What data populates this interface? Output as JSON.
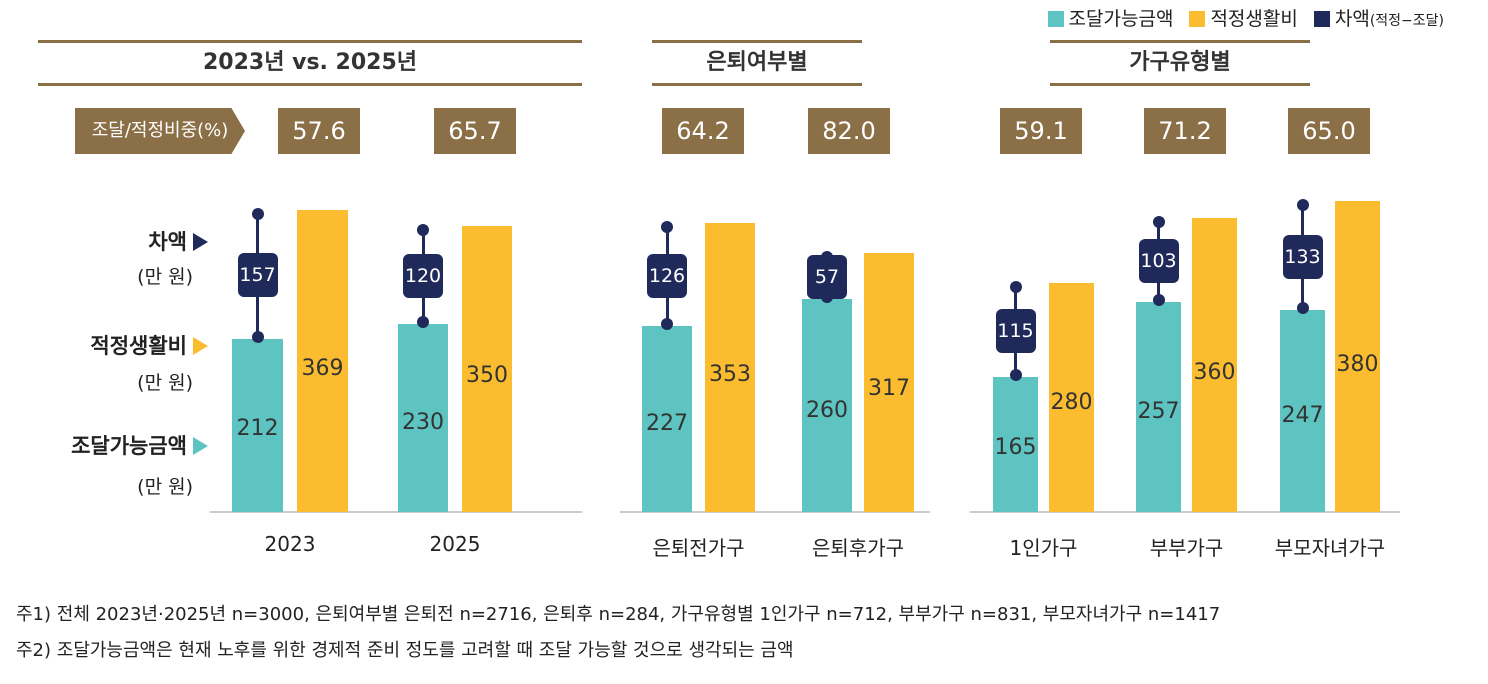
{
  "colors": {
    "available": "#5ec4c2",
    "adequate": "#fbbd2f",
    "diff": "#1f2a5a",
    "header": "#8b6f47"
  },
  "legend": [
    "조달가능금액",
    "적정생활비",
    "차액",
    "(적정−조달)"
  ],
  "headers": [
    "2023년 vs. 2025년",
    "은퇴여부별",
    "가구유형별"
  ],
  "ratio_label": "조달/적정비중(%)",
  "left_labels": {
    "diff": "차액",
    "adequate": "적정생활비",
    "available": "조달가능금액",
    "unit": "(만 원)"
  },
  "chart_data": {
    "type": "bar",
    "categories": [
      "2023",
      "2025",
      "은퇴전가구",
      "은퇴후가구",
      "1인가구",
      "부부가구",
      "부모자녀가구"
    ],
    "series": [
      {
        "name": "조달가능금액",
        "values": [
          212,
          230,
          227,
          260,
          165,
          257,
          247
        ]
      },
      {
        "name": "적정생활비",
        "values": [
          369,
          350,
          353,
          317,
          280,
          360,
          380
        ]
      },
      {
        "name": "차액(적정−조달)",
        "values": [
          157,
          120,
          126,
          57,
          115,
          103,
          133
        ]
      }
    ],
    "ratio": [
      "57.6",
      "65.7",
      "64.2",
      "82.0",
      "59.1",
      "71.2",
      "65.0"
    ],
    "unit": "만 원",
    "ylim": [
      0,
      400
    ]
  },
  "notes": [
    "주1) 전체 2023년·2025년 n=3000, 은퇴여부별 은퇴전 n=2716, 은퇴후 n=284, 가구유형별 1인가구 n=712, 부부가구 n=831, 부모자녀가구 n=1417",
    "주2) 조달가능금액은 현재 노후를 위한 경제적 준비 정도를 고려할 때 조달 가능할 것으로 생각되는 금액"
  ]
}
